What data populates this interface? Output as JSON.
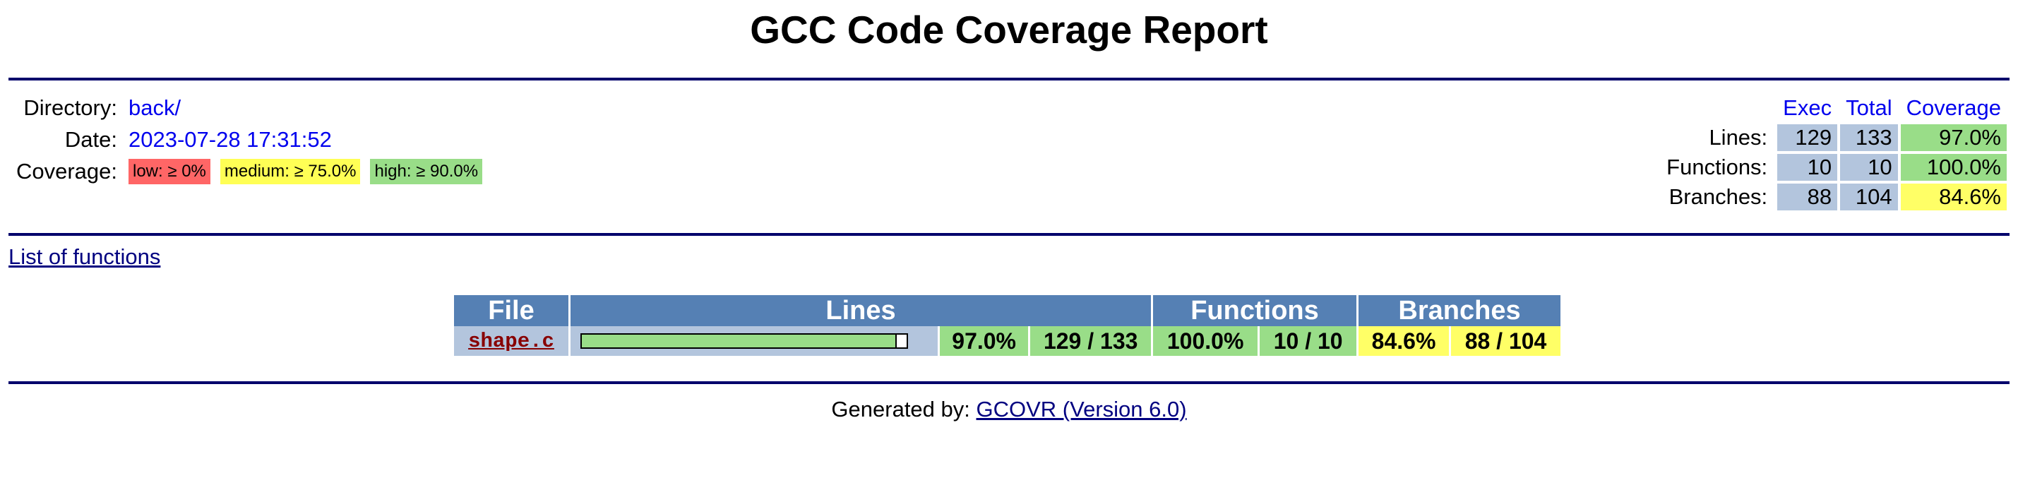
{
  "title": "GCC Code Coverage Report",
  "header": {
    "directory_label": "Directory:",
    "directory_value": "back/",
    "date_label": "Date:",
    "date_value": "2023-07-28 17:31:52",
    "coverage_label": "Coverage:",
    "legend": {
      "low": "low: ≥ 0%",
      "medium": "medium: ≥ 75.0%",
      "high": "high: ≥ 90.0%"
    }
  },
  "summary": {
    "columns": {
      "exec": "Exec",
      "total": "Total",
      "coverage": "Coverage"
    },
    "rows": [
      {
        "label": "Lines:",
        "exec": "129",
        "total": "133",
        "coverage": "97.0%",
        "level": "high"
      },
      {
        "label": "Functions:",
        "exec": "10",
        "total": "10",
        "coverage": "100.0%",
        "level": "high"
      },
      {
        "label": "Branches:",
        "exec": "88",
        "total": "104",
        "coverage": "84.6%",
        "level": "medium"
      }
    ]
  },
  "functions_link": "List of functions",
  "file_table": {
    "headers": {
      "file": "File",
      "lines": "Lines",
      "functions": "Functions",
      "branches": "Branches"
    },
    "rows": [
      {
        "file": "shape.c",
        "line_bar_fraction": 0.97,
        "lines_pct": "97.0%",
        "lines_count": "129 / 133",
        "functions_pct": "100.0%",
        "functions_count": "10 / 10",
        "branches_pct": "84.6%",
        "branches_count": "88 / 104"
      }
    ]
  },
  "footer": {
    "prefix": "Generated by:",
    "link": "GCOVR (Version 6.0)"
  },
  "colors": {
    "rule": "#00006b",
    "header_bg": "#5580b4",
    "neutral_bg": "#b3c5dd",
    "high": "#99dd88",
    "medium": "#ffff66",
    "low": "#ff6666",
    "link": "#0000ee"
  }
}
